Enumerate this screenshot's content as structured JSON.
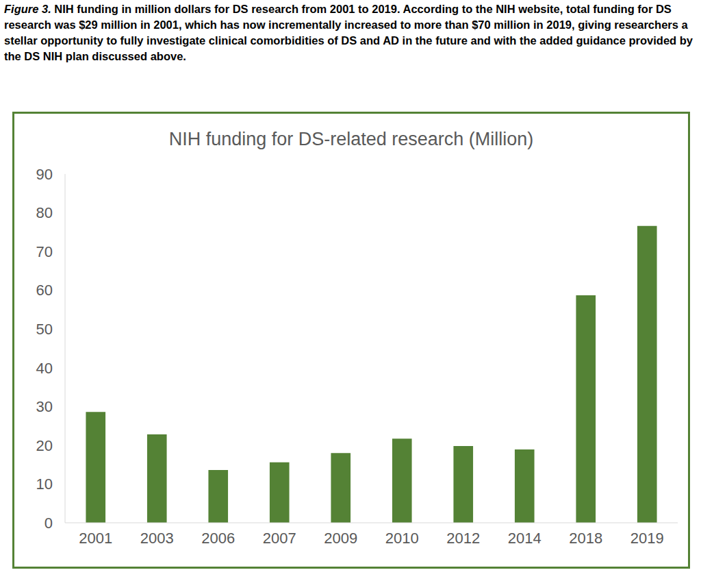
{
  "chart_data": {
    "type": "bar",
    "caption_label": "Figure 3.",
    "caption": "NIH funding in million dollars for DS research from 2001 to 2019. According to the NIH website, total funding for DS research was $29 million in 2001, which has now incrementally increased to more than $70 million in 2019, giving researchers a stellar opportunity to fully investigate clinical comorbidities of DS and AD in the future and with the added guidance provided by the DS NIH plan discussed above.",
    "title": "NIH funding for DS-related research (Million)",
    "categories": [
      "2001",
      "2003",
      "2006",
      "2007",
      "2009",
      "2010",
      "2012",
      "2014",
      "2018",
      "2019"
    ],
    "values": [
      28.6,
      22.8,
      13.6,
      15.6,
      18.0,
      21.7,
      19.8,
      18.9,
      58.7,
      76.6
    ],
    "color": "#548235",
    "ylim": [
      0,
      90
    ],
    "yticks": [
      0,
      10,
      20,
      30,
      40,
      50,
      60,
      70,
      80,
      90
    ],
    "grid": false
  }
}
